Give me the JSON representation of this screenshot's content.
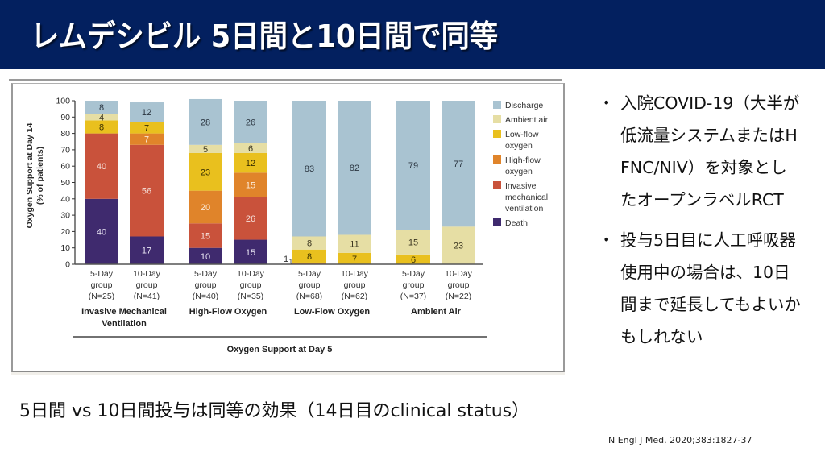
{
  "slide": {
    "title": "レムデシビル 5日間と10日間で同等",
    "bullets": [
      "入院COVID-19（大半が低流量システムまたはHFNC/NIV）を対象としたオープンラベルRCT",
      "投与5日目に人工呼吸器使用中の場合は、10日間まで延長してもよいかもしれない"
    ],
    "bullet_glyph": "•",
    "summary": "5日間 vs 10日間投与は同等の効果（14日目のclinical status）",
    "citation": "N Engl J Med. 2020;383:1827-37",
    "colors": {
      "title_bar": "#03205f",
      "title_text": "#ffffff"
    }
  },
  "chart_data": {
    "type": "bar",
    "stacked": true,
    "title": "",
    "ylabel": "Oxygen Support at Day 14 (% of patients)",
    "ylabel_lines": [
      "Oxygen Support at Day 14",
      "(% of patients)"
    ],
    "xlabel": "Oxygen Support at Day 5",
    "ylim": [
      0,
      100
    ],
    "yticks": [
      0,
      10,
      20,
      30,
      40,
      50,
      60,
      70,
      80,
      90,
      100
    ],
    "legend_position": "right",
    "grid": false,
    "category_groups": [
      {
        "name": "Invasive Mechanical Ventilation",
        "name_lines": [
          "Invasive Mechanical",
          "Ventilation"
        ],
        "bars": [
          0,
          1
        ]
      },
      {
        "name": "High-Flow Oxygen",
        "name_lines": [
          "High-Flow Oxygen"
        ],
        "bars": [
          2,
          3
        ]
      },
      {
        "name": "Low-Flow Oxygen",
        "name_lines": [
          "Low-Flow Oxygen"
        ],
        "bars": [
          4,
          5
        ]
      },
      {
        "name": "Ambient Air",
        "name_lines": [
          "Ambient Air"
        ],
        "bars": [
          6,
          7
        ]
      }
    ],
    "categories": [
      {
        "line1": "5-Day",
        "line2": "group",
        "line3": "(N=25)"
      },
      {
        "line1": "10-Day",
        "line2": "group",
        "line3": "(N=41)"
      },
      {
        "line1": "5-Day",
        "line2": "group",
        "line3": "(N=40)"
      },
      {
        "line1": "10-Day",
        "line2": "group",
        "line3": "(N=35)"
      },
      {
        "line1": "5-Day",
        "line2": "group",
        "line3": "(N=68)"
      },
      {
        "line1": "10-Day",
        "line2": "group",
        "line3": "(N=62)"
      },
      {
        "line1": "5-Day",
        "line2": "group",
        "line3": "(N=37)"
      },
      {
        "line1": "10-Day",
        "line2": "group",
        "line3": "(N=22)"
      }
    ],
    "series": [
      {
        "name": "Death",
        "legend_lines": [
          "Death"
        ],
        "color": "#3f2a6e",
        "label_color": "#e8e4f2",
        "values": [
          40,
          17,
          10,
          15,
          0,
          0,
          0,
          0
        ]
      },
      {
        "name": "Invasive mechanical ventilation",
        "legend_lines": [
          "Invasive",
          "mechanical",
          "ventilation"
        ],
        "color": "#c9523b",
        "label_color": "#f6e2dc",
        "values": [
          40,
          56,
          15,
          26,
          0,
          0,
          0,
          0
        ]
      },
      {
        "name": "High-flow oxygen",
        "legend_lines": [
          "High-flow",
          "oxygen"
        ],
        "color": "#e0842a",
        "label_color": "#fbe8d4",
        "values": [
          0,
          7,
          20,
          15,
          1,
          0,
          0,
          0
        ]
      },
      {
        "name": "Low-flow oxygen",
        "legend_lines": [
          "Low-flow",
          "oxygen"
        ],
        "color": "#e9c01e",
        "label_color": "#3a3000",
        "values": [
          8,
          7,
          23,
          12,
          8,
          7,
          6,
          0
        ]
      },
      {
        "name": "Ambient air",
        "legend_lines": [
          "Ambient air"
        ],
        "color": "#e6dea4",
        "label_color": "#3a3520",
        "values": [
          4,
          0,
          5,
          6,
          8,
          11,
          15,
          23
        ]
      },
      {
        "name": "Discharge",
        "legend_lines": [
          "Discharge"
        ],
        "color": "#a9c3d1",
        "label_color": "#2a3540",
        "values": [
          8,
          12,
          28,
          26,
          83,
          82,
          79,
          77
        ]
      }
    ],
    "legend_order": [
      "Discharge",
      "Ambient air",
      "Low-flow oxygen",
      "High-flow oxygen",
      "Invasive mechanical ventilation",
      "Death"
    ],
    "annotations": [
      {
        "text": "1",
        "bar": 4,
        "series": "High-flow oxygen",
        "note": "small value labeled outside bar"
      }
    ]
  }
}
